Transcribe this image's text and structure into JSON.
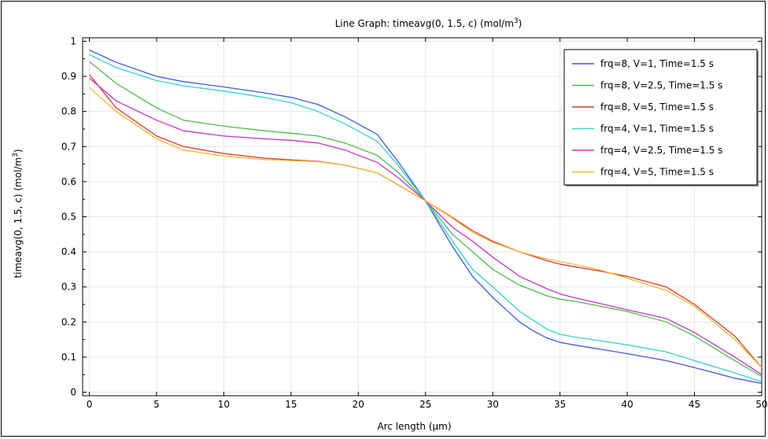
{
  "chart_data": {
    "type": "line",
    "title": "Line Graph: timeavg(0, 1.5, c) (mol/m³)",
    "title_parts": {
      "main": "Line Graph: timeavg(0, 1.5, c) (mol/m",
      "sup": "3",
      "end": ")"
    },
    "xlabel": "Arc length (µm)",
    "ylabel": "timeavg(0, 1.5, c) (mol/m³)",
    "ylabel_parts": {
      "main": "timeavg(0, 1.5, c) (mol/m",
      "sup": "3",
      "end": ")"
    },
    "xlim": [
      -0.5,
      50
    ],
    "ylim": [
      -0.01,
      1.01
    ],
    "xticks": [
      0,
      5,
      10,
      15,
      20,
      25,
      30,
      35,
      40,
      45,
      50
    ],
    "yticks": [
      0,
      0.1,
      0.2,
      0.3,
      0.4,
      0.5,
      0.6,
      0.7,
      0.8,
      0.9,
      1
    ],
    "ytick_labels": [
      "0",
      "0.1",
      "0.2",
      "0.3",
      "0.4",
      "0.5",
      "0.6",
      "0.7",
      "0.8",
      "0.9",
      "1"
    ],
    "xtick_labels": [
      "0",
      "5",
      "10",
      "15",
      "20",
      "25",
      "30",
      "35",
      "40",
      "45",
      "50"
    ],
    "grid": true,
    "legend_position": "top-right",
    "series": [
      {
        "name": "frq=8, V=1, Time=1.5 s",
        "color": "#3b5bdb",
        "x": [
          0,
          2,
          5,
          7,
          10,
          13,
          15,
          17,
          19,
          21.4,
          23,
          25,
          27,
          28.5,
          30,
          31,
          32,
          33,
          34,
          35,
          36,
          40,
          42.9,
          45,
          48,
          50
        ],
        "y": [
          0.975,
          0.94,
          0.9,
          0.885,
          0.87,
          0.853,
          0.84,
          0.82,
          0.785,
          0.735,
          0.655,
          0.545,
          0.415,
          0.33,
          0.27,
          0.235,
          0.2,
          0.175,
          0.155,
          0.142,
          0.135,
          0.11,
          0.09,
          0.07,
          0.04,
          0.025
        ]
      },
      {
        "name": "frq=8, V=2.5, Time=1.5 s",
        "color": "#4cba4c",
        "x": [
          0,
          2,
          5,
          7,
          10,
          13,
          15,
          17,
          19,
          21.4,
          23,
          25,
          27,
          28.5,
          30,
          32,
          34,
          35,
          36,
          40,
          42.9,
          45,
          48,
          50
        ],
        "y": [
          0.942,
          0.88,
          0.81,
          0.775,
          0.758,
          0.745,
          0.738,
          0.73,
          0.71,
          0.675,
          0.625,
          0.545,
          0.45,
          0.4,
          0.35,
          0.305,
          0.275,
          0.265,
          0.26,
          0.23,
          0.2,
          0.16,
          0.09,
          0.045
        ]
      },
      {
        "name": "frq=8, V=5, Time=1.5 s",
        "color": "#d63a3a",
        "x": [
          0,
          2,
          5,
          7,
          10,
          13,
          15,
          17,
          19,
          21.4,
          23,
          25,
          27,
          28.5,
          30,
          32,
          34,
          35,
          36,
          38,
          40,
          42.9,
          45,
          48,
          50
        ],
        "y": [
          0.905,
          0.81,
          0.73,
          0.7,
          0.68,
          0.667,
          0.662,
          0.658,
          0.647,
          0.625,
          0.59,
          0.545,
          0.498,
          0.46,
          0.43,
          0.4,
          0.375,
          0.365,
          0.358,
          0.345,
          0.33,
          0.3,
          0.25,
          0.16,
          0.07
        ]
      },
      {
        "name": "frq=4, V=1, Time=1.5 s",
        "color": "#34d1d1",
        "x": [
          0,
          2,
          5,
          7,
          10,
          13,
          15,
          17,
          19,
          21.4,
          23,
          25,
          27,
          28.5,
          30,
          32,
          34,
          35,
          36,
          40,
          42.9,
          45,
          48,
          50
        ],
        "y": [
          0.962,
          0.925,
          0.888,
          0.873,
          0.858,
          0.84,
          0.825,
          0.8,
          0.765,
          0.715,
          0.645,
          0.545,
          0.43,
          0.35,
          0.3,
          0.23,
          0.18,
          0.165,
          0.158,
          0.135,
          0.115,
          0.09,
          0.055,
          0.03
        ]
      },
      {
        "name": "frq=4, V=2.5, Time=1.5 s",
        "color": "#c634c6",
        "x": [
          0,
          2,
          5,
          7,
          10,
          13,
          15,
          17,
          19,
          21.4,
          23,
          25,
          27,
          28.5,
          30,
          32,
          34,
          35,
          36,
          40,
          42.9,
          45,
          48,
          50
        ],
        "y": [
          0.895,
          0.83,
          0.775,
          0.745,
          0.73,
          0.722,
          0.718,
          0.71,
          0.69,
          0.655,
          0.61,
          0.545,
          0.47,
          0.43,
          0.385,
          0.33,
          0.295,
          0.28,
          0.27,
          0.235,
          0.21,
          0.17,
          0.1,
          0.05
        ]
      },
      {
        "name": "frq=4, V=5, Time=1.5 s",
        "color": "#f5b82e",
        "x": [
          0,
          2,
          5,
          7,
          10,
          13,
          15,
          17,
          19,
          21.4,
          23,
          25,
          27,
          28.5,
          30,
          32,
          34,
          35,
          36,
          38,
          40,
          42.9,
          45,
          48,
          50
        ],
        "y": [
          0.868,
          0.8,
          0.722,
          0.69,
          0.673,
          0.663,
          0.66,
          0.657,
          0.647,
          0.625,
          0.59,
          0.545,
          0.496,
          0.455,
          0.427,
          0.4,
          0.38,
          0.372,
          0.365,
          0.348,
          0.325,
          0.29,
          0.245,
          0.15,
          0.07
        ]
      }
    ]
  }
}
